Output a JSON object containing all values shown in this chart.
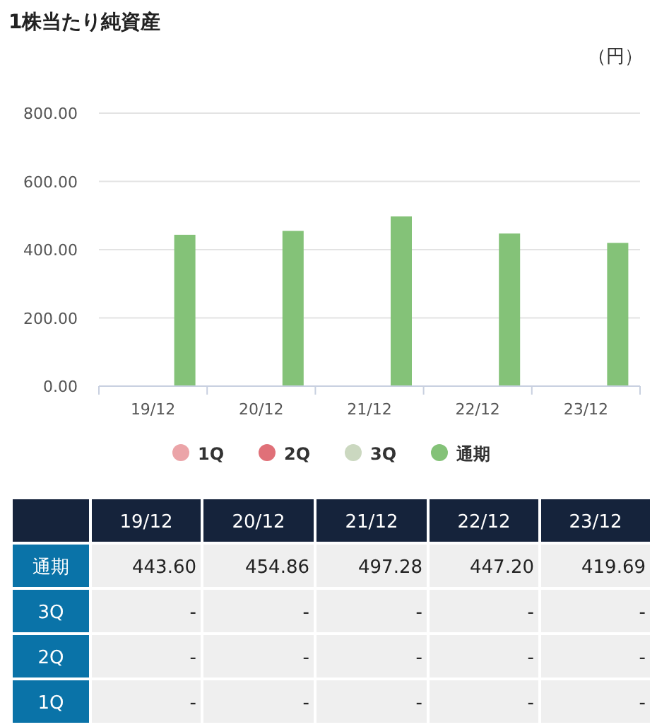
{
  "chart_data": {
    "type": "bar",
    "title": "1株当たり純資産",
    "ylabel": "（円）",
    "categories": [
      "19/12",
      "20/12",
      "21/12",
      "22/12",
      "23/12"
    ],
    "series": [
      {
        "name": "1Q",
        "color": "#eba4a8",
        "values": [
          null,
          null,
          null,
          null,
          null
        ],
        "value_labels": [
          "-",
          "-",
          "-",
          "-",
          "-"
        ]
      },
      {
        "name": "2Q",
        "color": "#e07078",
        "values": [
          null,
          null,
          null,
          null,
          null
        ],
        "value_labels": [
          "-",
          "-",
          "-",
          "-",
          "-"
        ]
      },
      {
        "name": "3Q",
        "color": "#cbd8c0",
        "values": [
          null,
          null,
          null,
          null,
          null
        ],
        "value_labels": [
          "-",
          "-",
          "-",
          "-",
          "-"
        ]
      },
      {
        "name": "通期",
        "color": "#84c278",
        "values": [
          443.6,
          454.86,
          497.28,
          447.2,
          419.69
        ],
        "value_labels": [
          "443.60",
          "454.86",
          "497.28",
          "447.20",
          "419.69"
        ]
      }
    ],
    "ylim": [
      0,
      800
    ],
    "yticks": [
      {
        "value": 0,
        "label": "0.00"
      },
      {
        "value": 200,
        "label": "200.00"
      },
      {
        "value": 400,
        "label": "400.00"
      },
      {
        "value": 600,
        "label": "600.00"
      },
      {
        "value": 800,
        "label": "800.00"
      }
    ],
    "grid": "y",
    "legend": "bottom"
  }
}
